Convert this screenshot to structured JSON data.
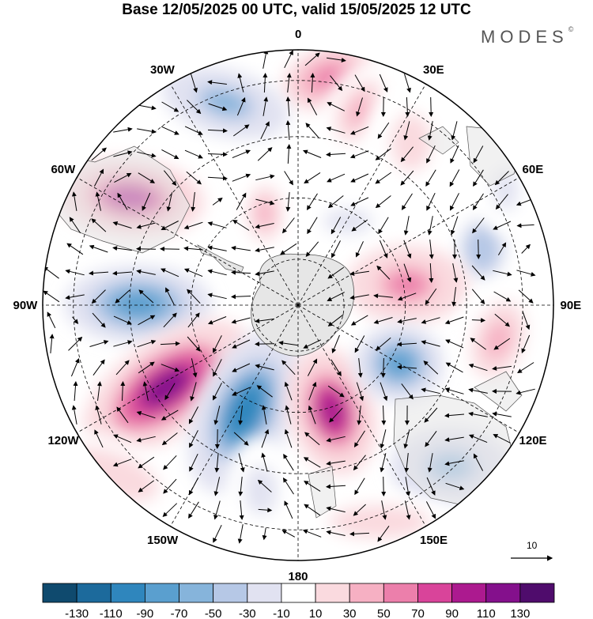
{
  "header": {
    "title": "Base 12/05/2025 00 UTC, valid 15/05/2025 12 UTC",
    "brand": "MODES",
    "brand_mark": "©"
  },
  "map": {
    "projection": "south polar stereographic",
    "field": "anomaly (colour shading) with wind vectors",
    "longitude_labels": [
      {
        "label": "0",
        "lon": 0
      },
      {
        "label": "30E",
        "lon": 30
      },
      {
        "label": "60E",
        "lon": 60
      },
      {
        "label": "90E",
        "lon": 90
      },
      {
        "label": "120E",
        "lon": 120
      },
      {
        "label": "150E",
        "lon": 150
      },
      {
        "label": "180",
        "lon": 180
      },
      {
        "label": "150W",
        "lon": -150
      },
      {
        "label": "120W",
        "lon": -120
      },
      {
        "label": "90W",
        "lon": -90
      },
      {
        "label": "60W",
        "lon": -60
      },
      {
        "label": "30W",
        "lon": -30
      }
    ],
    "reference_vector": {
      "label": "10"
    },
    "colors": {
      "land": "#e6e6e6",
      "coast": "#555555",
      "grid": "#000000",
      "vectors": "#000000"
    }
  },
  "colorbar": {
    "levels": [
      -130,
      -110,
      -90,
      -70,
      -50,
      -30,
      -10,
      10,
      30,
      50,
      70,
      90,
      110,
      130
    ],
    "tick_labels": [
      "-130",
      "-110",
      "-90",
      "-70",
      "-50",
      "-30",
      "-10",
      "10",
      "30",
      "50",
      "70",
      "90",
      "110",
      "130"
    ],
    "colors": [
      "#0f4a6e",
      "#1c6a9c",
      "#2f86bd",
      "#5a9fcf",
      "#86b4db",
      "#b6c8e6",
      "#e1e2f1",
      "#ffffff",
      "#fadadf",
      "#f6b0c3",
      "#ec7fab",
      "#d9449a",
      "#ac1a8f",
      "#84108c",
      "#4f0c6c"
    ]
  }
}
